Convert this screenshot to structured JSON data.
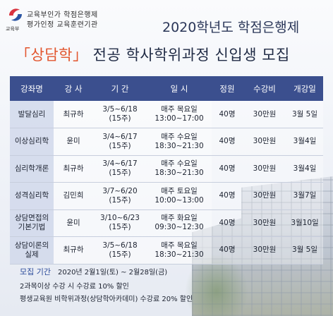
{
  "header": {
    "logo_caption": "교육부",
    "org_line1": "교육부인가 학점은행제",
    "org_line2": "평가인정 교육훈련기관",
    "year_title": "2020학년도 학점은행제",
    "main_title_accent": "「상담학」",
    "main_title_rest": " 전공 학사학위과정 신입생 모집"
  },
  "table": {
    "headers": [
      "강좌명",
      "강 사",
      "기 간",
      "일 시",
      "정원",
      "수강비",
      "개강일"
    ],
    "rows": [
      {
        "name": "발달심리",
        "teacher": "최규하",
        "period": "3/5~6/18",
        "weeks": "(15주)",
        "day": "매주 목요일",
        "time": "13:00~17:00",
        "capacity": "40명",
        "fee": "30만원",
        "open": "3월 5일"
      },
      {
        "name": "이상심리학",
        "teacher": "윤미",
        "period": "3/4~6/17",
        "weeks": "(15주)",
        "day": "매주 수요일",
        "time": "18:30~21:30",
        "capacity": "40명",
        "fee": "30만원",
        "open": "3월4일"
      },
      {
        "name": "심리학개론",
        "teacher": "최규하",
        "period": "3/4~6/17",
        "weeks": "(15주)",
        "day": "매주 수요일",
        "time": "18:30~21:30",
        "capacity": "40명",
        "fee": "30만원",
        "open": "3월4일"
      },
      {
        "name": "성격심리학",
        "teacher": "김민희",
        "period": "3/7~6/20",
        "weeks": "(15주)",
        "day": "매주 토요일",
        "time": "10:00~13:00",
        "capacity": "40명",
        "fee": "30만원",
        "open": "3월7일"
      },
      {
        "name": "상담면접의\n기본기법",
        "teacher": "윤미",
        "period": "3/10~6/23",
        "weeks": "(15주)",
        "day": "매주 화요일",
        "time": "09:30~12:30",
        "capacity": "40명",
        "fee": "30만원",
        "open": "3월10일"
      },
      {
        "name": "상담이론의\n실제",
        "teacher": "최규하",
        "period": "3/5~6/18",
        "weeks": "(15주)",
        "day": "매주 목요일",
        "time": "18:30~21:30",
        "capacity": "40명",
        "fee": "30만원",
        "open": "3월 5일"
      }
    ]
  },
  "footer": {
    "recruit_label": "모집 기간",
    "recruit_period": "2020년 2월1일(토) ~ 2월28일(금)",
    "note1": "2과목이상 수강 시 수강료 10% 할인",
    "note2": "평생교육원 비학위과정(상담학아카데미) 수강료 20% 할인"
  },
  "colors": {
    "header_bg": "#3b4f8e",
    "accent": "#e2552e",
    "name_cell_bg": "#cdd6ea"
  }
}
